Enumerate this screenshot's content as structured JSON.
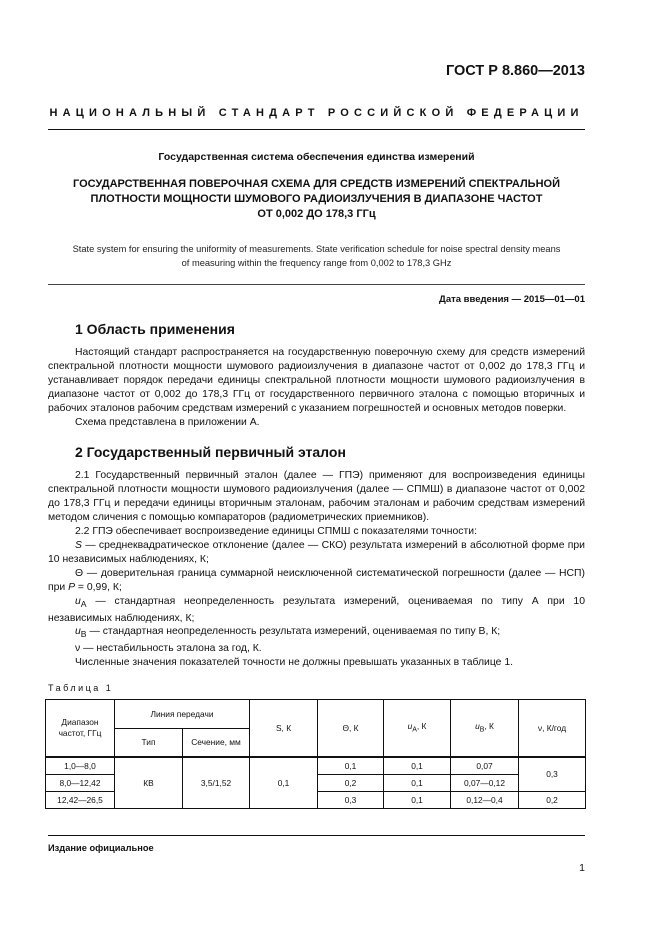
{
  "header": {
    "doc_code": "ГОСТ Р 8.860—2013",
    "national_standard": "НАЦИОНАЛЬНЫЙ СТАНДАРТ РОССИЙСКОЙ ФЕДЕРАЦИИ"
  },
  "title": {
    "system": "Государственная система обеспечения единства измерений",
    "main_lines": [
      "ГОСУДАРСТВЕННАЯ ПОВЕРОЧНАЯ СХЕМА ДЛЯ СРЕДСТВ ИЗМЕРЕНИЙ СПЕКТРАЛЬНОЙ",
      "ПЛОТНОСТИ МОЩНОСТИ ШУМОВОГО РАДИОИЗЛУЧЕНИЯ В ДИАПАЗОНЕ ЧАСТОТ",
      "ОТ 0,002 ДО 178,3 ГГц"
    ],
    "english_lines": [
      "State system for ensuring the uniformity of measurements. State verification schedule for noise spectral density means",
      "of measuring within the frequency range from 0,002 to 178,3 GHz"
    ],
    "date": "Дата введения — 2015—01—01"
  },
  "section1": {
    "heading": "1  Область применения",
    "paragraphs": [
      "Настоящий стандарт распространяется на государственную поверочную схему для средств измерений спектральной плотности мощности шумового радиоизлучения в диапазоне частот от 0,002 до 178,3 ГГц и устанавливает порядок передачи единицы спектральной плотности мощности шумового радиоизлучения в диапазоне частот от 0,002 до 178,3 ГГц от государственного первичного эталона с помощью вторичных и рабочих эталонов рабочим средствам измерений с указанием погрешностей и основных методов поверки.",
      "Схема представлена в приложении А."
    ]
  },
  "section2": {
    "heading": "2  Государственный первичный эталон",
    "p1": "2.1  Государственный первичный эталон (далее — ГПЭ) применяют для воспроизведения единицы спектральной плотности мощности шумового радиоизлучения (далее — СПМШ) в диапазоне частот от 0,002 до 178,3 ГГц и передачи единицы вторичным эталонам, рабочим эталонам и рабочим средствам измерений методом сличения с помощью компараторов (радиометрических приемников).",
    "p2": "2.2  ГПЭ обеспечивает воспроизведение единицы СПМШ с показателями точности:",
    "s_sym": "S",
    "s_text": " — среднеквадратическое отклонение (далее — СКО) результата измерений в абсолютной форме при 10 независимых наблюдениях, К;",
    "theta_text": "Θ — доверительная граница суммарной неисключенной систематической погрешности (далее — НСП) при ",
    "p_sym": "P",
    "theta_tail": " = 0,99, К;",
    "ua_sym": "u",
    "ua_sub": "A",
    "ua_text": " — стандартная неопределенность результата измерений, оцениваемая по типу А при 10 независимых наблюдениях, К;",
    "ub_sym": "u",
    "ub_sub": "B",
    "ub_text": " — стандартная неопределенность результата измерений, оцениваемая по типу В, К;",
    "nu_text": "ν — нестабильность эталона за год, К.",
    "final": "Численные значения показателей точности не должны превышать указанных в таблице 1."
  },
  "table": {
    "caption": "Таблица 1",
    "headers": {
      "range": "Диапазон частот, ГГц",
      "line": "Линия передачи",
      "type": "Тип",
      "section": "Сечение, мм",
      "s": "S, К",
      "theta": "Θ, К",
      "ua": "u",
      "ua_sub": "A",
      "ua_unit": ", К",
      "ub": "u",
      "ub_sub": "B",
      "ub_unit": ", К",
      "nu": "ν, К/год"
    },
    "shared": {
      "type": "КВ",
      "section": "3,5/1,52",
      "s": "0,1",
      "nu_12": "0,3"
    },
    "rows": [
      {
        "range": "1,0—8,0",
        "theta": "0,1",
        "ua": "0,1",
        "ub": "0,07"
      },
      {
        "range": "8,0—12,42",
        "theta": "0,2",
        "ua": "0,1",
        "ub": "0,07—0,12"
      },
      {
        "range": "12,42—26,5",
        "theta": "0,3",
        "ua": "0,1",
        "ub": "0,12—0,4",
        "nu": "0,2"
      }
    ]
  },
  "footer": {
    "edition": "Издание официальное",
    "page_number": "1"
  }
}
